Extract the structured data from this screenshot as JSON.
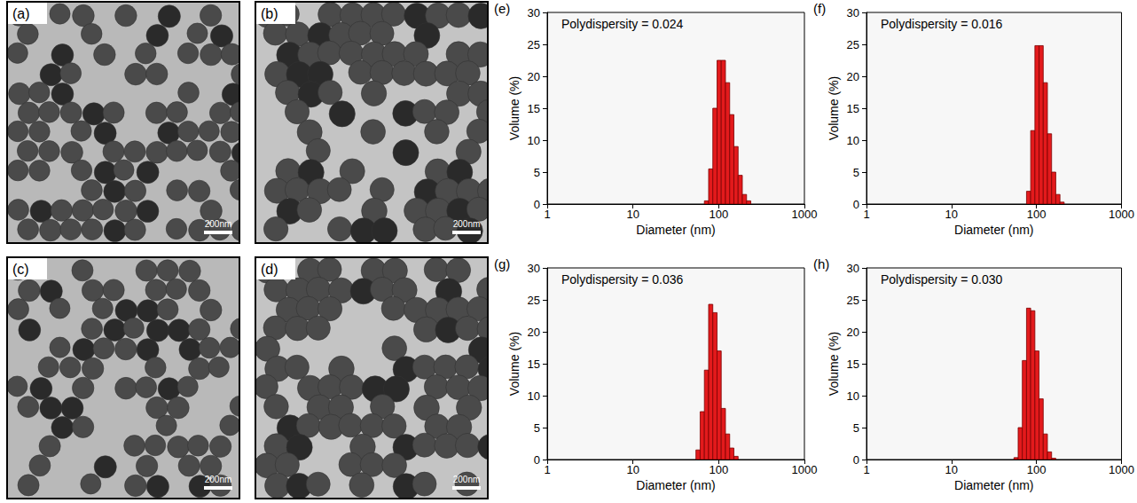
{
  "chart_data": [
    {
      "type": "histogram",
      "panel_label": "(e)",
      "annotation": "Polydispersity = 0.024",
      "x_label": "Diameter (nm)",
      "y_label": "Volume (%)",
      "bins": [
        68.1,
        76.3,
        85.4,
        95.7,
        107.1,
        120.0,
        134.4,
        150.5,
        168.6,
        188.8,
        211.5,
        236.9
      ],
      "values": [
        0.5,
        5.5,
        15,
        22.5,
        22.5,
        19,
        14,
        9,
        4.5,
        1.5,
        0.5
      ],
      "color": "#e31a1c",
      "xlim": [
        1,
        1000
      ],
      "xticks": [
        1,
        10,
        100,
        1000
      ],
      "ylim": [
        0,
        30
      ],
      "yticks": [
        0,
        5,
        10,
        15,
        20,
        25,
        30
      ],
      "log": "x",
      "grid": false
    },
    {
      "type": "histogram",
      "panel_label": "(f)",
      "annotation": "Polydispersity = 0.016",
      "x_label": "Diameter (nm)",
      "y_label": "Volume (%)",
      "bins": [
        76.3,
        85.4,
        95.7,
        107.1,
        120.0,
        134.4,
        150.5,
        168.6,
        188.8,
        211.5
      ],
      "values": [
        2,
        11.5,
        24.8,
        24.8,
        19,
        11,
        5,
        1.5,
        0.3
      ],
      "color": "#e31a1c",
      "xlim": [
        1,
        1000
      ],
      "xticks": [
        1,
        10,
        100,
        1000
      ],
      "ylim": [
        0,
        30
      ],
      "yticks": [
        0,
        5,
        10,
        15,
        20,
        25,
        30
      ],
      "log": "x",
      "grid": false
    },
    {
      "type": "histogram",
      "panel_label": "(g)",
      "annotation": "Polydispersity = 0.036",
      "x_label": "Diameter (nm)",
      "y_label": "Volume (%)",
      "bins": [
        54.3,
        60.8,
        68.1,
        76.3,
        85.4,
        95.7,
        107.1,
        120.0,
        134.4,
        150.5,
        168.6
      ],
      "values": [
        1.5,
        7.5,
        14,
        24.3,
        23,
        17,
        8,
        4,
        1.8,
        0.5
      ],
      "color": "#e31a1c",
      "xlim": [
        1,
        1000
      ],
      "xticks": [
        1,
        10,
        100,
        1000
      ],
      "ylim": [
        0,
        30
      ],
      "yticks": [
        0,
        5,
        10,
        15,
        20,
        25,
        30
      ],
      "log": "x",
      "grid": false
    },
    {
      "type": "histogram",
      "panel_label": "(h)",
      "annotation": "Polydispersity = 0.030",
      "x_label": "Diameter (nm)",
      "y_label": "Volume (%)",
      "bins": [
        54.3,
        60.8,
        68.1,
        76.3,
        85.4,
        95.7,
        107.1,
        120.0,
        134.4,
        150.5,
        168.6
      ],
      "values": [
        0.3,
        5,
        15.5,
        23.7,
        23.3,
        17,
        9.5,
        4,
        1.2,
        0.2
      ],
      "color": "#e31a1c",
      "xlim": [
        1,
        1000
      ],
      "xticks": [
        1,
        10,
        100,
        1000
      ],
      "ylim": [
        0,
        30
      ],
      "yticks": [
        0,
        5,
        10,
        15,
        20,
        25,
        30
      ],
      "log": "x",
      "grid": false
    }
  ],
  "images": [
    {
      "panel_label": "(a)",
      "scale_bar": "200nm"
    },
    {
      "panel_label": "(b)",
      "scale_bar": "200nm"
    },
    {
      "panel_label": "(c)",
      "scale_bar": "200nm"
    },
    {
      "panel_label": "(d)",
      "scale_bar": "200nm"
    }
  ]
}
